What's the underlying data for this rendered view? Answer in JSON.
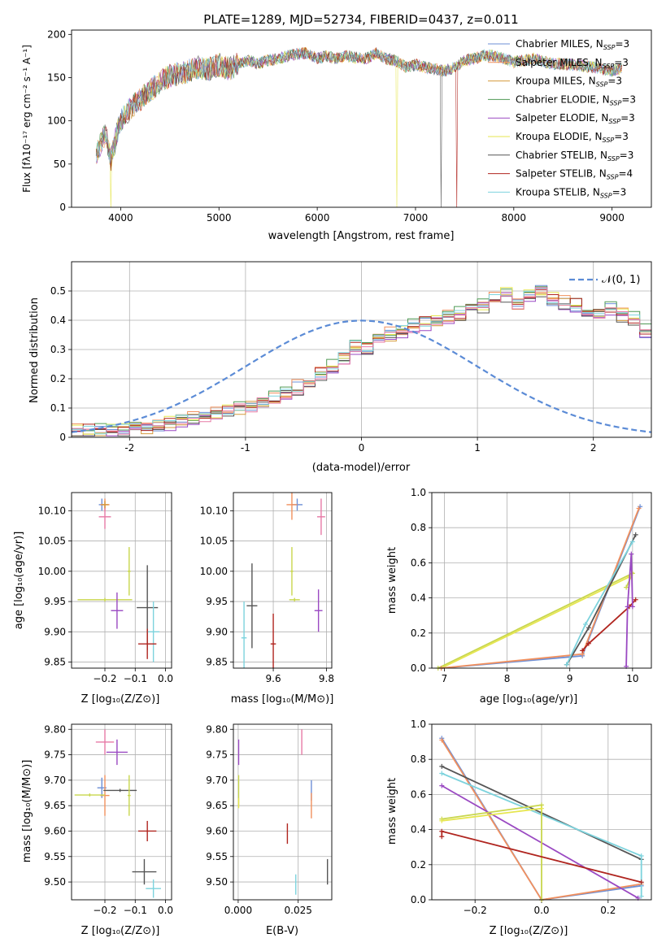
{
  "figure": {
    "colors": [
      "#6d8fd6",
      "#f1905e",
      "#d59a3c",
      "#4f9a55",
      "#9a49c2",
      "#e6e64f",
      "#555555",
      "#b0251f",
      "#7dd3dd",
      "#e77aa6",
      "#c8d64c"
    ]
  },
  "chart_data": [
    {
      "id": "spectrum",
      "type": "line",
      "title": "PLATE=1289, MJD=52734, FIBERID=0437, z=0.011",
      "xlabel": "wavelength [Angstrom, rest frame]",
      "ylabel": "Flux [fλ10⁻¹⁷ erg cm⁻² s⁻¹ A⁻¹]",
      "xlim": [
        3500,
        9400
      ],
      "ylim": [
        0,
        205
      ],
      "xticks": [
        4000,
        5000,
        6000,
        7000,
        8000,
        9000
      ],
      "yticks": [
        0,
        50,
        100,
        150,
        200
      ],
      "legend_position": "right",
      "legend": [
        {
          "name": "Chabrier MILES, N",
          "sub": "SSP",
          "eq": "=3",
          "color": "#6d8fd6"
        },
        {
          "name": "Salpeter MILES, N",
          "sub": "SSP",
          "eq": "=3",
          "color": "#f1905e"
        },
        {
          "name": "Kroupa MILES, N",
          "sub": "SSP",
          "eq": "=3",
          "color": "#d59a3c"
        },
        {
          "name": "Chabrier ELODIE, N",
          "sub": "SSP",
          "eq": "=3",
          "color": "#4f9a55"
        },
        {
          "name": "Salpeter ELODIE, N",
          "sub": "SSP",
          "eq": "=3",
          "color": "#9a49c2"
        },
        {
          "name": "Kroupa ELODIE, N",
          "sub": "SSP",
          "eq": "=3",
          "color": "#e6e64f"
        },
        {
          "name": "Chabrier STELIB, N",
          "sub": "SSP",
          "eq": "=3",
          "color": "#555555"
        },
        {
          "name": "Salpeter STELIB, N",
          "sub": "SSP",
          "eq": "=4",
          "color": "#b0251f"
        },
        {
          "name": "Kroupa STELIB, N",
          "sub": "SSP",
          "eq": "=3",
          "color": "#7dd3dd"
        }
      ],
      "continuum": {
        "x": [
          3750,
          3800,
          3850,
          3900,
          3950,
          4000,
          4100,
          4200,
          4300,
          4400,
          4500,
          4600,
          4700,
          4800,
          4900,
          5000,
          5100,
          5200,
          5300,
          5400,
          5500,
          5600,
          5700,
          5800,
          5900,
          6000,
          6100,
          6200,
          6300,
          6400,
          6500,
          6600,
          6700,
          6800,
          6900,
          7000,
          7100,
          7200,
          7300,
          7400,
          7500,
          7600,
          7700,
          7800,
          7900,
          8000,
          8200,
          8400,
          8600,
          8800,
          9000,
          9100
        ],
        "y": [
          60,
          75,
          85,
          55,
          80,
          100,
          115,
          125,
          135,
          145,
          152,
          155,
          158,
          162,
          160,
          165,
          160,
          166,
          170,
          166,
          170,
          172,
          175,
          178,
          178,
          172,
          175,
          172,
          175,
          173,
          172,
          178,
          172,
          170,
          162,
          165,
          162,
          160,
          158,
          162,
          170,
          172,
          176,
          175,
          172,
          168,
          172,
          166,
          165,
          162,
          158,
          160
        ]
      },
      "drops": [
        {
          "series": 5,
          "x": 3900
        },
        {
          "series": 5,
          "x": 6810
        },
        {
          "series": 6,
          "x": 7260
        },
        {
          "series": 7,
          "x": 7420
        }
      ]
    },
    {
      "id": "residuals",
      "type": "histogram",
      "xlabel": "(data-model)/error",
      "ylabel": "Normed distribution",
      "xlim": [
        -2.5,
        2.5
      ],
      "ylim": [
        0,
        0.6
      ],
      "xticks": [
        -2,
        -1,
        0,
        1,
        2
      ],
      "yticks": [
        0.0,
        0.1,
        0.2,
        0.3,
        0.4,
        0.5
      ],
      "grid": true,
      "legend_position": "top-right",
      "legend": [
        {
          "name": "𝒩(0, 1)",
          "color": "#5b8bd6",
          "style": "dashed"
        }
      ],
      "bin_width": 0.1,
      "bin_start": -2.5,
      "base_heights": [
        0.02,
        0.02,
        0.022,
        0.025,
        0.03,
        0.03,
        0.035,
        0.04,
        0.05,
        0.06,
        0.065,
        0.07,
        0.08,
        0.09,
        0.1,
        0.11,
        0.12,
        0.13,
        0.15,
        0.17,
        0.19,
        0.22,
        0.24,
        0.27,
        0.31,
        0.31,
        0.33,
        0.35,
        0.36,
        0.38,
        0.39,
        0.4,
        0.41,
        0.42,
        0.44,
        0.45,
        0.47,
        0.49,
        0.46,
        0.48,
        0.5,
        0.47,
        0.46,
        0.45,
        0.43,
        0.42,
        0.44,
        0.42,
        0.4,
        0.36,
        0.35,
        0.34,
        0.32,
        0.3,
        0.27,
        0.25,
        0.24,
        0.22,
        0.19,
        0.17,
        0.15,
        0.14,
        0.12,
        0.11,
        0.1,
        0.09,
        0.08,
        0.07,
        0.06,
        0.055,
        0.05,
        0.04,
        0.035,
        0.03,
        0.03,
        0.025,
        0.025,
        0.02,
        0.02,
        0.015,
        0.015,
        0.015,
        0.015,
        0.02,
        0.02,
        0.02,
        0.02,
        0.02,
        0.02,
        0.02,
        0.02,
        0.02,
        0.02,
        0.02,
        0.02,
        0.02,
        0.02,
        0.02,
        0.02,
        0.02
      ],
      "offsets": [
        0.0,
        0.015,
        -0.01,
        0.02,
        -0.015,
        0.01,
        -0.02,
        0.012,
        0.005,
        -0.008
      ],
      "series_colors": [
        "#6d8fd6",
        "#f1905e",
        "#d59a3c",
        "#4f9a55",
        "#9a49c2",
        "#e6e64f",
        "#555555",
        "#b0251f",
        "#7dd3dd",
        "#e77aa6"
      ]
    },
    {
      "id": "age-vs-Z",
      "type": "errorbar",
      "xlabel": "Z [log₁₀(Z/Z⊙)]",
      "ylabel": "age  [log₁₀(age/yr)]",
      "xlim": [
        -0.31,
        0.02
      ],
      "ylim": [
        9.84,
        10.13
      ],
      "xticks": [
        -0.2,
        -0.1,
        0.0
      ],
      "xticklabels": [
        "−0.2",
        "−0.1",
        "0.0"
      ],
      "yticks": [
        9.85,
        9.9,
        9.95,
        10.0,
        10.05,
        10.1
      ],
      "yticklabels": [
        "9.85",
        "9.90",
        "9.95",
        "10.00",
        "10.05",
        "10.10"
      ],
      "grid": true,
      "points": [
        {
          "x": -0.21,
          "y": 10.11,
          "xerr": 0.01,
          "yerr": 0.01,
          "color": "#6d8fd6"
        },
        {
          "x": -0.2,
          "y": 10.11,
          "xerr": 0.015,
          "yerr": 0.01,
          "color": "#f1905e"
        },
        {
          "x": -0.2,
          "y": 10.09,
          "xerr": 0.02,
          "yerr": 0.02,
          "color": "#e77aa6"
        },
        {
          "x": -0.2,
          "y": 10.11,
          "xerr": 0.012,
          "yerr": 0.006,
          "color": "#d59a3c"
        },
        {
          "x": -0.12,
          "y": 10.0,
          "xerr": 0.005,
          "yerr": 0.04,
          "color": "#c8d64c"
        },
        {
          "x": -0.2,
          "y": 9.953,
          "xerr": 0.09,
          "yerr": 0.003,
          "color": "#c8d64c"
        },
        {
          "x": -0.16,
          "y": 9.935,
          "xerr": 0.02,
          "yerr": 0.03,
          "color": "#9a49c2"
        },
        {
          "x": -0.06,
          "y": 9.94,
          "xerr": 0.035,
          "yerr": 0.07,
          "color": "#555555"
        },
        {
          "x": -0.04,
          "y": 9.9,
          "xerr": 0.02,
          "yerr": 0.05,
          "color": "#7dd3dd"
        },
        {
          "x": -0.06,
          "y": 9.88,
          "xerr": 0.03,
          "yerr": 0.025,
          "color": "#b0251f"
        }
      ]
    },
    {
      "id": "age-vs-mass",
      "type": "errorbar",
      "xlabel": "mass [log₁₀(M/M⊙)]",
      "ylabel": "",
      "xlim": [
        9.45,
        9.82
      ],
      "ylim": [
        9.84,
        10.13
      ],
      "xticks": [
        9.6,
        9.8
      ],
      "xticklabels": [
        "9.6",
        "9.8"
      ],
      "yticks": [
        9.85,
        9.9,
        9.95,
        10.0,
        10.05,
        10.1
      ],
      "yticklabels": [
        "9.85",
        "9.90",
        "9.95",
        "10.00",
        "10.05",
        "10.10"
      ],
      "grid": true,
      "points": [
        {
          "x": 9.69,
          "y": 10.11,
          "xerr": 0.02,
          "yerr": 0.01,
          "color": "#6d8fd6"
        },
        {
          "x": 9.67,
          "y": 10.11,
          "xerr": 0.02,
          "yerr": 0.025,
          "color": "#f1905e"
        },
        {
          "x": 9.78,
          "y": 10.09,
          "xerr": 0.015,
          "yerr": 0.03,
          "color": "#e77aa6"
        },
        {
          "x": 9.67,
          "y": 10.0,
          "xerr": 0.005,
          "yerr": 0.04,
          "color": "#c8d64c"
        },
        {
          "x": 9.68,
          "y": 9.953,
          "xerr": 0.02,
          "yerr": 0.003,
          "color": "#c8d64c"
        },
        {
          "x": 9.77,
          "y": 9.935,
          "xerr": 0.015,
          "yerr": 0.035,
          "color": "#9a49c2"
        },
        {
          "x": 9.52,
          "y": 9.943,
          "xerr": 0.02,
          "yerr": 0.07,
          "color": "#555555"
        },
        {
          "x": 9.49,
          "y": 9.89,
          "xerr": 0.01,
          "yerr": 0.06,
          "color": "#7dd3dd"
        },
        {
          "x": 9.6,
          "y": 9.88,
          "xerr": 0.01,
          "yerr": 0.05,
          "color": "#b0251f"
        }
      ]
    },
    {
      "id": "massweight-vs-age",
      "type": "line",
      "xlabel": "age  [log₁₀(age/yr)]",
      "ylabel": "mass weight",
      "xlim": [
        6.8,
        10.3
      ],
      "ylim": [
        0,
        1.0
      ],
      "xticks": [
        7,
        8,
        9,
        10
      ],
      "yticks": [
        0.0,
        0.2,
        0.4,
        0.6,
        0.8,
        1.0
      ],
      "yticklabels": [
        "0.0",
        "0.2",
        "0.4",
        "0.6",
        "0.8",
        "1.0"
      ],
      "grid": true,
      "series": [
        {
          "color": "#c8d64c",
          "x": [
            6.9,
            10.0,
            9.9
          ],
          "y": [
            0.0,
            0.54,
            0.46
          ]
        },
        {
          "color": "#e6e64f",
          "x": [
            6.95,
            9.95
          ],
          "y": [
            0.0,
            0.52
          ]
        },
        {
          "color": "#6d8fd6",
          "x": [
            6.95,
            9.2,
            10.12
          ],
          "y": [
            0.0,
            0.07,
            0.92
          ]
        },
        {
          "color": "#f1905e",
          "x": [
            6.95,
            9.2,
            10.1
          ],
          "y": [
            0.0,
            0.08,
            0.91
          ]
        },
        {
          "color": "#555555",
          "x": [
            8.95,
            9.3,
            10.05
          ],
          "y": [
            0.02,
            0.23,
            0.76
          ]
        },
        {
          "color": "#7dd3dd",
          "x": [
            8.95,
            9.25,
            10.0
          ],
          "y": [
            0.02,
            0.25,
            0.72
          ]
        },
        {
          "color": "#b0251f",
          "x": [
            9.2,
            9.3,
            9.95,
            10.05
          ],
          "y": [
            0.1,
            0.14,
            0.35,
            0.39
          ]
        },
        {
          "color": "#9a49c2",
          "x": [
            9.9,
            9.92,
            9.98,
            10.0
          ],
          "y": [
            0.01,
            0.35,
            0.65,
            0.35
          ]
        }
      ]
    },
    {
      "id": "mass-vs-Z",
      "type": "errorbar",
      "xlabel": "Z [log₁₀(Z/Z⊙)]",
      "ylabel": "mass [log₁₀(M/M⊙)]",
      "xlim": [
        -0.31,
        0.02
      ],
      "ylim": [
        9.465,
        9.81
      ],
      "xticks": [
        -0.2,
        -0.1,
        0.0
      ],
      "xticklabels": [
        "−0.2",
        "−0.1",
        "0.0"
      ],
      "yticks": [
        9.5,
        9.55,
        9.6,
        9.65,
        9.7,
        9.75,
        9.8
      ],
      "yticklabels": [
        "9.50",
        "9.55",
        "9.60",
        "9.65",
        "9.70",
        "9.75",
        "9.80"
      ],
      "grid": true,
      "points": [
        {
          "x": -0.2,
          "y": 9.775,
          "xerr": 0.03,
          "yerr": 0.025,
          "color": "#e77aa6"
        },
        {
          "x": -0.16,
          "y": 9.755,
          "xerr": 0.035,
          "yerr": 0.025,
          "color": "#9a49c2"
        },
        {
          "x": -0.21,
          "y": 9.685,
          "xerr": 0.015,
          "yerr": 0.02,
          "color": "#6d8fd6"
        },
        {
          "x": -0.2,
          "y": 9.67,
          "xerr": 0.015,
          "yerr": 0.04,
          "color": "#f1905e"
        },
        {
          "x": -0.15,
          "y": 9.68,
          "xerr": 0.055,
          "yerr": 0.003,
          "color": "#555555"
        },
        {
          "x": -0.25,
          "y": 9.671,
          "xerr": 0.05,
          "yerr": 0.003,
          "color": "#c8d64c"
        },
        {
          "x": -0.12,
          "y": 9.67,
          "xerr": 0.005,
          "yerr": 0.04,
          "color": "#c8d64c"
        },
        {
          "x": -0.06,
          "y": 9.6,
          "xerr": 0.03,
          "yerr": 0.02,
          "color": "#b0251f"
        },
        {
          "x": -0.07,
          "y": 9.52,
          "xerr": 0.04,
          "yerr": 0.025,
          "color": "#555555"
        },
        {
          "x": -0.04,
          "y": 9.487,
          "xerr": 0.025,
          "yerr": 0.018,
          "color": "#7dd3dd"
        }
      ]
    },
    {
      "id": "mass-vs-EBV",
      "type": "errorbar",
      "xlabel": "E(B-V)",
      "ylabel": "",
      "xlim": [
        -0.002,
        0.039
      ],
      "ylim": [
        9.465,
        9.81
      ],
      "xticks": [
        0.0,
        0.025
      ],
      "xticklabels": [
        "0.000",
        "0.025"
      ],
      "yticks": [
        9.5,
        9.55,
        9.6,
        9.65,
        9.7,
        9.75,
        9.8
      ],
      "yticklabels": [
        "9.50",
        "9.55",
        "9.60",
        "9.65",
        "9.70",
        "9.75",
        "9.80"
      ],
      "grid": true,
      "points": [
        {
          "x": 0.0002,
          "y": 9.755,
          "xerr": 0,
          "yerr": 0.025,
          "color": "#9a49c2"
        },
        {
          "x": 0.0002,
          "y": 9.68,
          "xerr": 0,
          "yerr": 0.03,
          "color": "#c8d64c"
        },
        {
          "x": 0.0002,
          "y": 9.655,
          "xerr": 0,
          "yerr": 0.01,
          "color": "#e6e64f"
        },
        {
          "x": 0.0265,
          "y": 9.775,
          "xerr": 0,
          "yerr": 0.025,
          "color": "#e77aa6"
        },
        {
          "x": 0.0305,
          "y": 9.68,
          "xerr": 0,
          "yerr": 0.02,
          "color": "#6d8fd6"
        },
        {
          "x": 0.0305,
          "y": 9.65,
          "xerr": 0,
          "yerr": 0.025,
          "color": "#f1905e"
        },
        {
          "x": 0.0205,
          "y": 9.595,
          "xerr": 0,
          "yerr": 0.02,
          "color": "#b0251f"
        },
        {
          "x": 0.0372,
          "y": 9.52,
          "xerr": 0,
          "yerr": 0.025,
          "color": "#555555"
        },
        {
          "x": 0.024,
          "y": 9.495,
          "xerr": 0,
          "yerr": 0.02,
          "color": "#7dd3dd"
        }
      ]
    },
    {
      "id": "massweight-vs-Z",
      "type": "line",
      "xlabel": "Z [log₁₀(Z/Z⊙)]",
      "ylabel": "mass weight",
      "xlim": [
        -0.33,
        0.33
      ],
      "ylim": [
        0,
        1.0
      ],
      "xticks": [
        -0.2,
        0.0,
        0.2
      ],
      "xticklabels": [
        "−0.2",
        "0.0",
        "0.2"
      ],
      "yticks": [
        0.0,
        0.2,
        0.4,
        0.6,
        0.8,
        1.0
      ],
      "yticklabels": [
        "0.0",
        "0.2",
        "0.4",
        "0.6",
        "0.8",
        "1.0"
      ],
      "grid": true,
      "series": [
        {
          "color": "#6d8fd6",
          "x": [
            -0.3,
            0.0,
            0.3
          ],
          "y": [
            0.92,
            0.0,
            0.08
          ]
        },
        {
          "color": "#f1905e",
          "x": [
            -0.3,
            0.0,
            0.3
          ],
          "y": [
            0.91,
            0.0,
            0.09
          ]
        },
        {
          "color": "#555555",
          "x": [
            -0.3,
            0.3
          ],
          "y": [
            0.76,
            0.23
          ]
        },
        {
          "color": "#7dd3dd",
          "x": [
            -0.3,
            0.3,
            0.3
          ],
          "y": [
            0.72,
            0.25,
            0.02
          ]
        },
        {
          "color": "#9a49c2",
          "x": [
            -0.3,
            0.29
          ],
          "y": [
            0.65,
            0.01
          ]
        },
        {
          "color": "#c8d64c",
          "x": [
            -0.3,
            0.0,
            0.0
          ],
          "y": [
            0.46,
            0.54,
            0.0
          ]
        },
        {
          "color": "#e6e64f",
          "x": [
            -0.3,
            0.0
          ],
          "y": [
            0.45,
            0.52
          ]
        },
        {
          "color": "#b0251f",
          "x": [
            -0.3,
            -0.3,
            0.3
          ],
          "y": [
            0.36,
            0.39,
            0.1
          ]
        }
      ]
    }
  ]
}
